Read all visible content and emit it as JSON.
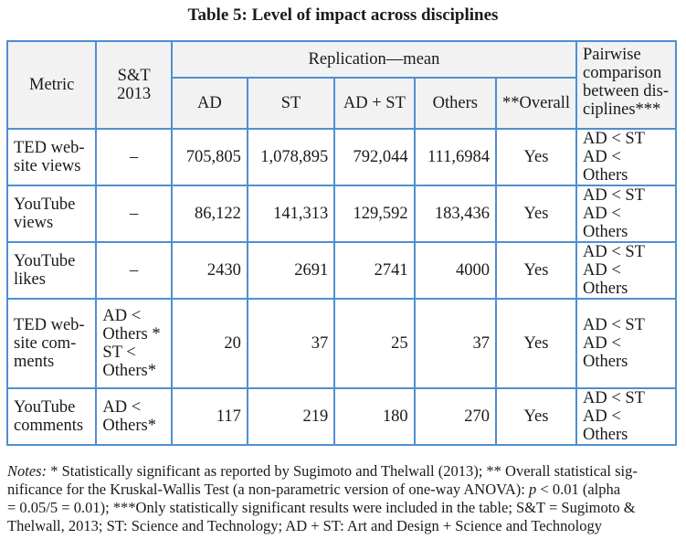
{
  "title": "Table 5: Level of impact across disciplines",
  "header": {
    "metric": "Metric",
    "st2013_line1": "S&T",
    "st2013_line2": "2013",
    "replication": "Replication—mean",
    "ad": "AD",
    "st": "ST",
    "ad_st": "AD + ST",
    "others": "Others",
    "overall": "**Overall",
    "pairwise_lines": [
      "Pairwise",
      "comparison",
      "between dis-",
      "ciplines***"
    ]
  },
  "rows": [
    {
      "metric": [
        "TED web-",
        "site views"
      ],
      "st2013": [
        "–"
      ],
      "ad": "705,805",
      "st": "1,078,895",
      "ad_st": "792,044",
      "others": "111,6984",
      "overall": "Yes",
      "pairwise": [
        "AD < ST",
        "AD < Others"
      ]
    },
    {
      "metric": [
        "YouTube",
        "views"
      ],
      "st2013": [
        "–"
      ],
      "ad": "86,122",
      "st": "141,313",
      "ad_st": "129,592",
      "others": "183,436",
      "overall": "Yes",
      "pairwise": [
        "AD < ST",
        "AD < Others"
      ]
    },
    {
      "metric": [
        "YouTube",
        "likes"
      ],
      "st2013": [
        "–"
      ],
      "ad": "2430",
      "st": "2691",
      "ad_st": "2741",
      "others": "4000",
      "overall": "Yes",
      "pairwise": [
        "AD < ST",
        "AD < Others"
      ]
    },
    {
      "metric": [
        "TED web-",
        "site com-",
        "ments"
      ],
      "st2013": [
        "AD <",
        "Others *",
        "ST <",
        "Others*"
      ],
      "ad": "20",
      "st": "37",
      "ad_st": "25",
      "others": "37",
      "overall": "Yes",
      "pairwise": [
        "AD < ST",
        "AD < Others"
      ]
    },
    {
      "metric": [
        "YouTube",
        "comments"
      ],
      "st2013": [
        "AD <",
        "Others*"
      ],
      "ad": "117",
      "st": "219",
      "ad_st": "180",
      "others": "270",
      "overall": "Yes",
      "pairwise": [
        "AD < ST",
        "AD < Others"
      ]
    }
  ],
  "notes": {
    "label": "Notes:",
    "line1": " * Statistically significant as reported by Sugimoto and Thelwall (2013); ** Overall statistical sig-",
    "line2_a": "nificance for the Kruskal-Wallis Test (a non-parametric version of one-way ANOVA): ",
    "line2_p": "p",
    "line2_b": " < 0.01 (alpha",
    "line3": "= 0.05/5 = 0.01); ***Only statistically significant results were included in the table;  S&T = Sugimoto &",
    "line4": "Thelwall, 2013; ST: Science and Technology; AD + ST: Art and Design + Science and Technology"
  }
}
